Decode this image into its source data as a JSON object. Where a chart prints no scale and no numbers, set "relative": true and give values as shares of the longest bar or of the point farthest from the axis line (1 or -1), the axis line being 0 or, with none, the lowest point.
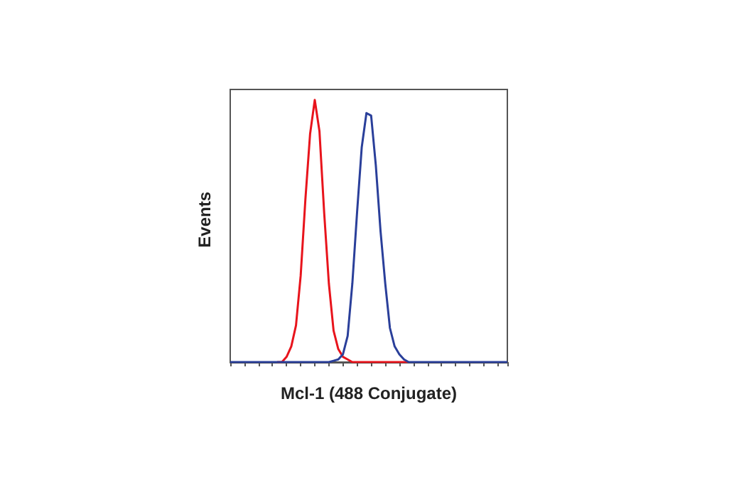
{
  "chart_data": {
    "type": "line",
    "relative": true,
    "xlabel": "Mcl-1 (488 Conjugate)",
    "ylabel": "Events",
    "categories": [
      null,
      null,
      null,
      null,
      null,
      null,
      null,
      null,
      null,
      null,
      null,
      null,
      null,
      null,
      null,
      null,
      null,
      null,
      null,
      null,
      null,
      null,
      null,
      null,
      null,
      null,
      null,
      null,
      null,
      null,
      null,
      null,
      null,
      null,
      null,
      null,
      null,
      null,
      null,
      null,
      null,
      null,
      null,
      null,
      null,
      null,
      null,
      null,
      null,
      null,
      null,
      null,
      null,
      null,
      null,
      null,
      null,
      null,
      null,
      null
    ],
    "series": [
      {
        "color": "#e8141c",
        "values": [
          null,
          null,
          null,
          null,
          null,
          null,
          null,
          null,
          null,
          null,
          0,
          0,
          0.02,
          0.06,
          0.14,
          0.33,
          0.62,
          0.87,
          1,
          0.88,
          0.57,
          0.3,
          0.12,
          0.05,
          0.02,
          0.01,
          0,
          0,
          0,
          0,
          0,
          0,
          0,
          0,
          0,
          0,
          0,
          0,
          0,
          null,
          null,
          null,
          null,
          null,
          null,
          null,
          null,
          null,
          null,
          null,
          null,
          null,
          null,
          null,
          null,
          null,
          null,
          null,
          null,
          null
        ]
      },
      {
        "color": "#2a3f9a",
        "values": [
          0,
          0,
          0,
          0,
          0,
          0,
          0,
          0,
          0,
          0,
          0,
          0,
          0,
          0,
          0,
          0,
          0,
          0,
          0,
          0,
          0,
          0,
          0.005,
          0.01,
          0.03,
          0.1,
          0.3,
          0.57,
          0.82,
          0.95,
          0.94,
          0.75,
          0.5,
          0.3,
          0.13,
          0.06,
          0.03,
          0.01,
          0,
          0,
          0,
          0,
          0,
          0,
          0,
          0,
          0,
          0,
          0,
          0,
          0,
          0,
          0,
          0,
          0,
          0,
          0,
          0,
          0,
          0
        ]
      }
    ]
  }
}
